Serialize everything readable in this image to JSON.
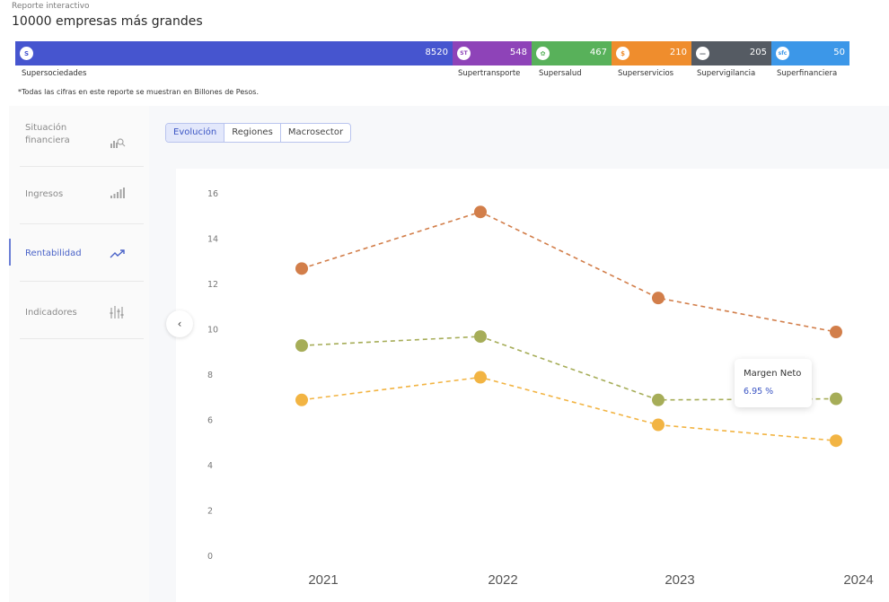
{
  "header": {
    "subtitle": "Reporte interactivo",
    "title": "10000 empresas más grandes"
  },
  "supers": [
    {
      "name": "Supersociedades",
      "value": "8520",
      "icon": "S",
      "color": "#4655cf"
    },
    {
      "name": "Supertransporte",
      "value": "548",
      "icon": "ST",
      "color": "#8e43b8"
    },
    {
      "name": "Supersalud",
      "value": "467",
      "icon": "✿",
      "color": "#58b15a"
    },
    {
      "name": "Superservicios",
      "value": "210",
      "icon": "$",
      "color": "#ef8d2d"
    },
    {
      "name": "Supervigilancia",
      "value": "205",
      "icon": "—",
      "color": "#555b63"
    },
    {
      "name": "Superfinanciera",
      "value": "50",
      "icon": "sfc",
      "color": "#3c97e8"
    }
  ],
  "note": "*Todas las cifras en este reporte se muestran en Billones de Pesos.",
  "sidebar": {
    "items": [
      {
        "label": "Situación financiera",
        "icon": "chart-search-icon"
      },
      {
        "label": "Ingresos",
        "icon": "bar-chart-icon"
      },
      {
        "label": "Rentabilidad",
        "icon": "trend-up-icon"
      },
      {
        "label": "Indicadores",
        "icon": "indicators-icon"
      }
    ],
    "active": "Rentabilidad"
  },
  "tabs": [
    {
      "label": "Evolución"
    },
    {
      "label": "Regiones"
    },
    {
      "label": "Macrosector"
    }
  ],
  "tooltip": {
    "title": "Margen Neto",
    "value": "6.95 %"
  },
  "chart_data": {
    "type": "line",
    "x": [
      "2021",
      "2022",
      "2023",
      "2024"
    ],
    "yticks": [
      0,
      2,
      4,
      6,
      8,
      10,
      12,
      14,
      16
    ],
    "ylim": [
      0,
      16
    ],
    "grid": false,
    "line_style": "dashed",
    "series": [
      {
        "values": [
          12.7,
          15.2,
          11.4,
          9.9
        ],
        "color": "#d27e4a"
      },
      {
        "values": [
          9.3,
          9.7,
          6.9,
          6.95
        ],
        "color": "#a6ad58"
      },
      {
        "values": [
          6.9,
          7.9,
          5.8,
          5.1
        ],
        "color": "#f2b443"
      }
    ]
  },
  "colors": {
    "accent": "#4a63c8",
    "tab_active_bg": "#e3e8fb"
  }
}
